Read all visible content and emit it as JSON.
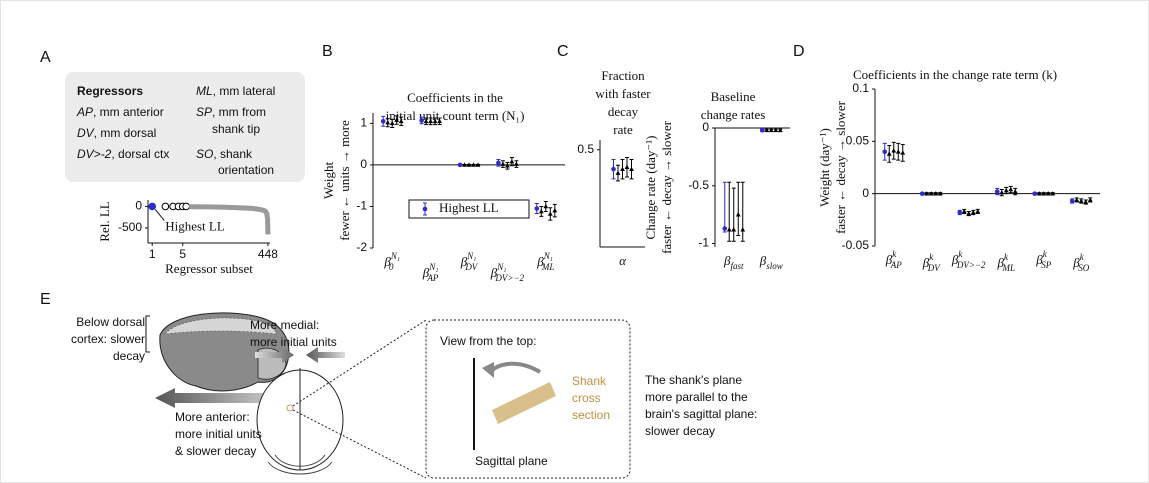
{
  "panel_labels": [
    "A",
    "B",
    "C",
    "D",
    "E"
  ],
  "regressors": {
    "title": "Regressors",
    "items": [
      {
        "key": "AP",
        "text": ", mm anterior"
      },
      {
        "key": "DV",
        "text": ", mm dorsal"
      },
      {
        "key": "DV>-2",
        "text": ", dorsal ctx"
      },
      {
        "key": "ML",
        "text": ", mm lateral"
      },
      {
        "key": "SP",
        "lines": [
          ", mm from",
          "shank tip"
        ]
      },
      {
        "key": "SO",
        "lines": [
          ", shank",
          "orientation"
        ]
      }
    ]
  },
  "chart_data": [
    {
      "type": "line",
      "ylabel": "Rel. LL",
      "xlabel": "Regressor subset",
      "annotation": "Highest LL",
      "xscale": "log",
      "xlim": [
        0.8,
        500
      ],
      "xticks": [
        1,
        5,
        448
      ],
      "ylim": [
        -850,
        150
      ],
      "yticks": [
        0,
        -500
      ],
      "series": [
        {
          "color": "#2b2bd0",
          "marker": "filled",
          "x": [
            1
          ],
          "values": [
            0
          ]
        },
        {
          "color": "#000000",
          "marker": "open",
          "x": [
            2,
            3,
            4,
            5,
            6
          ],
          "values": [
            0,
            0,
            0,
            0,
            0
          ]
        },
        {
          "color": "#9a9a9a",
          "marker": "none",
          "x": [
            7,
            20,
            50,
            100,
            200,
            300,
            380,
            420,
            440,
            448
          ],
          "values": [
            -5,
            -10,
            -20,
            -30,
            -45,
            -70,
            -100,
            -150,
            -300,
            -650
          ]
        }
      ]
    },
    {
      "type": "errorbar",
      "title": [
        "Coefficients in the",
        "initial unit count term (N₁)"
      ],
      "ylabel": [
        "Weight",
        "fewer ← units → more"
      ],
      "categories": [
        {
          "symbol": "β",
          "sub": "0",
          "sup": "N₁"
        },
        {
          "symbol": "β",
          "sub": "AP",
          "sup": "N₁"
        },
        {
          "symbol": "β",
          "sub": "DV",
          "sup": "N₁"
        },
        {
          "symbol": "β",
          "sub": "DV>−2",
          "sup": "N₁"
        },
        {
          "symbol": "β",
          "sub": "ML",
          "sup": "N₁"
        }
      ],
      "ylim": [
        -2,
        1.25
      ],
      "yticks": [
        -2,
        -1,
        0,
        1
      ],
      "legend": "lower center",
      "series": [
        {
          "name": "Highest LL",
          "color": "#2b2bd0",
          "values": [
            1.05,
            1.07,
            0,
            0.05,
            -1.05
          ],
          "errors": [
            0.12,
            0.08,
            0.01,
            0.08,
            0.12
          ]
        },
        {
          "color": "#000000",
          "values": [
            1.02,
            1.05,
            0,
            0.02,
            -1.12
          ],
          "errors": [
            0.1,
            0.08,
            0.01,
            0.08,
            0.12
          ]
        },
        {
          "color": "#000000",
          "values": [
            1.0,
            1.05,
            0,
            -0.02,
            -1.0
          ],
          "errors": [
            0.1,
            0.08,
            0.01,
            0.08,
            0.12
          ]
        },
        {
          "color": "#000000",
          "values": [
            1.08,
            1.05,
            0,
            0.08,
            -1.18
          ],
          "errors": [
            0.1,
            0.08,
            0.01,
            0.1,
            0.15
          ]
        },
        {
          "color": "#000000",
          "values": [
            1.05,
            1.05,
            0,
            0.02,
            -1.1
          ],
          "errors": [
            0.1,
            0.08,
            0.01,
            0.08,
            0.15
          ]
        }
      ]
    },
    {
      "type": "errorbar",
      "title": [
        "Fraction",
        "with faster",
        "decay",
        "rate"
      ],
      "categories": [
        "α"
      ],
      "ylim": [
        0,
        0.55
      ],
      "yticks": [
        0.5
      ],
      "series": [
        {
          "color": "#2b2bd0",
          "values": [
            0.4
          ],
          "errors": [
            0.05
          ]
        },
        {
          "color": "#000000",
          "values": [
            0.38
          ],
          "errors": [
            0.04
          ]
        },
        {
          "color": "#000000",
          "values": [
            0.4
          ],
          "errors": [
            0.05
          ]
        },
        {
          "color": "#000000",
          "values": [
            0.41
          ],
          "errors": [
            0.05
          ]
        },
        {
          "color": "#000000",
          "values": [
            0.4
          ],
          "errors": [
            0.05
          ]
        }
      ]
    },
    {
      "type": "errorbar",
      "title": [
        "Baseline",
        "change rates"
      ],
      "ylabel": [
        "Change rate (day⁻¹)",
        "faster ← decay → slower"
      ],
      "categories": [
        {
          "symbol": "β",
          "sub": "fast"
        },
        {
          "symbol": "β",
          "sub": "slow"
        }
      ],
      "ylim": [
        -1.03,
        0
      ],
      "yticks": [
        0,
        -0.5,
        -1
      ],
      "series": [
        {
          "color": "#2b2bd0",
          "values": [
            -0.87,
            -0.02
          ],
          "lower": [
            -0.9,
            -0.03
          ],
          "upper": [
            -0.47,
            -0.01
          ]
        },
        {
          "color": "#000000",
          "values": [
            -0.88,
            -0.02
          ],
          "lower": [
            -0.98,
            -0.03
          ],
          "upper": [
            -0.47,
            -0.01
          ]
        },
        {
          "color": "#000000",
          "values": [
            -0.88,
            -0.02
          ],
          "lower": [
            -0.98,
            -0.03
          ],
          "upper": [
            -0.52,
            -0.01
          ]
        },
        {
          "color": "#000000",
          "values": [
            -0.75,
            -0.02
          ],
          "lower": [
            -0.93,
            -0.03
          ],
          "upper": [
            -0.47,
            -0.01
          ]
        },
        {
          "color": "#000000",
          "values": [
            -0.88,
            -0.02
          ],
          "lower": [
            -0.98,
            -0.03
          ],
          "upper": [
            -0.47,
            -0.01
          ]
        }
      ]
    },
    {
      "type": "errorbar",
      "title": "Coefficients in the change rate term (k)",
      "ylabel": [
        "Weight (day⁻¹)",
        "faster ← decay → slower"
      ],
      "categories": [
        {
          "symbol": "β",
          "sub": "AP",
          "sup": "k"
        },
        {
          "symbol": "β",
          "sub": "DV",
          "sup": "k"
        },
        {
          "symbol": "β",
          "sub": "DV>−2",
          "sup": "k"
        },
        {
          "symbol": "β",
          "sub": "ML",
          "sup": "k"
        },
        {
          "symbol": "β",
          "sub": "SP",
          "sup": "k"
        },
        {
          "symbol": "β",
          "sub": "SO",
          "sup": "k"
        }
      ],
      "ylim": [
        -0.05,
        0.1
      ],
      "yticks": [
        -0.05,
        0,
        0.05,
        0.1
      ],
      "series": [
        {
          "color": "#2b2bd0",
          "values": [
            0.04,
            0,
            -0.018,
            0.002,
            0,
            -0.007
          ],
          "errors": [
            0.008,
            0.001,
            0.002,
            0.003,
            0.001,
            0.002
          ]
        },
        {
          "color": "#000000",
          "values": [
            0.038,
            0,
            -0.017,
            0.001,
            0,
            -0.006
          ],
          "errors": [
            0.008,
            0.001,
            0.002,
            0.003,
            0.001,
            0.002
          ]
        },
        {
          "color": "#000000",
          "values": [
            0.041,
            0,
            -0.019,
            0.003,
            0,
            -0.007
          ],
          "errors": [
            0.008,
            0.001,
            0.002,
            0.003,
            0.001,
            0.002
          ]
        },
        {
          "color": "#000000",
          "values": [
            0.04,
            0,
            -0.018,
            0.004,
            0,
            -0.008
          ],
          "errors": [
            0.008,
            0.001,
            0.002,
            0.003,
            0.001,
            0.002
          ]
        },
        {
          "color": "#000000",
          "values": [
            0.039,
            0,
            -0.017,
            0.002,
            0,
            -0.006
          ],
          "errors": [
            0.008,
            0.001,
            0.002,
            0.003,
            0.001,
            0.002
          ]
        }
      ]
    }
  ],
  "panel_e": {
    "dorsal": [
      "Below dorsal",
      "cortex: slower",
      "decay"
    ],
    "anterior": [
      "More anterior:",
      "more initial units",
      "& slower decay"
    ],
    "medial": [
      "More medial:",
      "more initial units"
    ],
    "view_title": "View from the top:",
    "shank": [
      "Shank",
      "cross",
      "section"
    ],
    "sagittal": "Sagittal plane",
    "parallel": [
      "The shank's plane",
      "more parallel to the",
      "brain's sagittal plane:",
      "slower decay"
    ]
  }
}
